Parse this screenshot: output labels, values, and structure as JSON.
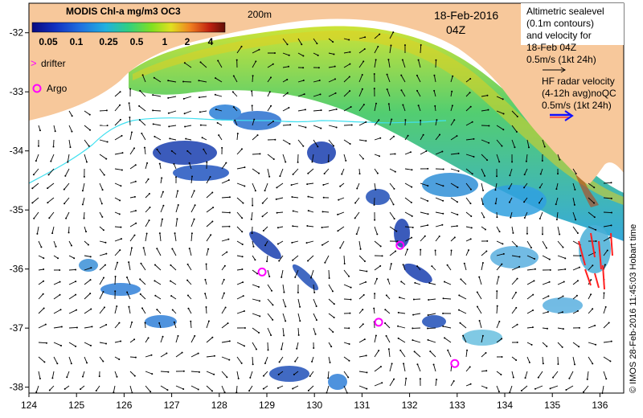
{
  "colorbar": {
    "title": "MODIS Chl-a mg/m3 OC3",
    "ticks": [
      "0.05",
      "0.1",
      "0.25",
      "0.5",
      "1",
      "2",
      "4"
    ]
  },
  "contour_label": "200m",
  "date": "18-Feb-2016",
  "time": "04Z",
  "legend_markers": {
    "drifter": "drifter",
    "argo": "Argo"
  },
  "altimetry_note": {
    "lines": [
      "Altimetric sealevel",
      "(0.1m contours)",
      "and velocity for",
      "18-Feb 04Z"
    ],
    "scale": "0.5m/s (1kt 24h)"
  },
  "hf_radar_note": {
    "lines": [
      "HF radar velocity",
      "(4-12h avg)noQC"
    ],
    "scale": "0.5m/s (1kt 24h)"
  },
  "credit": "© IMOS 28-Feb-2016 11:45:03 Hobart time",
  "axes": {
    "lon_ticks": [
      "124",
      "125",
      "126",
      "127",
      "128",
      "129",
      "130",
      "131",
      "132",
      "133",
      "134",
      "135",
      "136"
    ],
    "lat_ticks": [
      "-32",
      "-33",
      "-34",
      "-35",
      "-36",
      "-37",
      "-38"
    ]
  },
  "argo_floats": [
    {
      "lon": 128.9,
      "lat": -36.05
    },
    {
      "lon": 131.35,
      "lat": -36.9
    },
    {
      "lon": 131.8,
      "lat": -35.6
    },
    {
      "lon": 132.95,
      "lat": -37.6
    }
  ],
  "colors": {
    "land": "#f7c89b",
    "contour": "#40e0f0",
    "argo": "#ff00ff",
    "hf_arrow": "#1010ff",
    "hf_arrow_2": "#ff2020"
  }
}
